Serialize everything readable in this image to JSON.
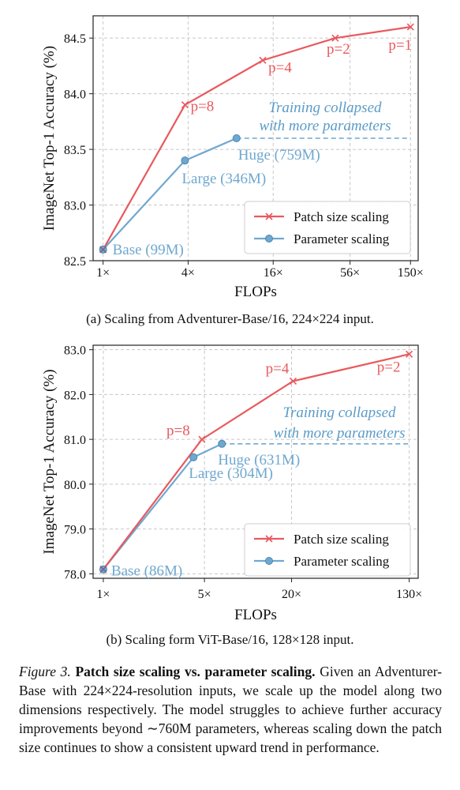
{
  "colors": {
    "patch": "#e8595d",
    "param": "#6fa8cf",
    "grid": "#c8c8c8",
    "collapse_text": "#5b9bc8"
  },
  "chart_data": [
    {
      "type": "line",
      "xlabel": "FLOPs",
      "ylabel": "ImageNet Top-1 Accuracy (%)",
      "x_scale": "log",
      "x_ticks": [
        1,
        4,
        16,
        56,
        150
      ],
      "x_tick_labels": [
        "1×",
        "4×",
        "16×",
        "56×",
        "150×"
      ],
      "xlim": [
        0.85,
        170
      ],
      "ylim": [
        82.5,
        84.7
      ],
      "y_ticks": [
        82.5,
        83.0,
        83.5,
        84.0,
        84.5
      ],
      "y_tick_labels": [
        "82.5",
        "83.0",
        "83.5",
        "84.0",
        "84.5"
      ],
      "grid": true,
      "legend_position": "bottom-right",
      "series": [
        {
          "name": "Patch size scaling",
          "marker": "x",
          "x": [
            1,
            3.8,
            13.5,
            44,
            150
          ],
          "y": [
            82.6,
            83.9,
            84.3,
            84.5,
            84.6
          ],
          "point_labels": [
            "",
            "p=8",
            "p=4",
            "p=2",
            "p=1"
          ]
        },
        {
          "name": "Parameter scaling",
          "marker": "o",
          "x": [
            1,
            3.8,
            8.8
          ],
          "y": [
            82.6,
            83.4,
            83.6
          ],
          "point_labels": [
            "Base (99M)",
            "Large (346M)",
            "Huge (759M)"
          ]
        }
      ],
      "plateau": {
        "y": 83.6,
        "x_from": 8.8,
        "x_to": 150
      },
      "annotation": [
        "Training collapsed",
        "with more parameters"
      ],
      "caption": "(a) Scaling from Adventurer-Base/16, 224×224 input."
    },
    {
      "type": "line",
      "xlabel": "FLOPs",
      "ylabel": "ImageNet Top-1 Accuracy (%)",
      "x_scale": "log",
      "x_ticks": [
        1,
        5,
        20,
        130
      ],
      "x_tick_labels": [
        "1×",
        "5×",
        "20×",
        "130×"
      ],
      "xlim": [
        0.85,
        150
      ],
      "ylim": [
        77.9,
        83.1
      ],
      "y_ticks": [
        78.0,
        79.0,
        80.0,
        81.0,
        82.0,
        83.0
      ],
      "y_tick_labels": [
        "78.0",
        "79.0",
        "80.0",
        "81.0",
        "82.0",
        "83.0"
      ],
      "grid": true,
      "legend_position": "bottom-right",
      "series": [
        {
          "name": "Patch size scaling",
          "marker": "x",
          "x": [
            1,
            4.8,
            20.5,
            130
          ],
          "y": [
            78.1,
            81.0,
            82.3,
            82.9
          ],
          "point_labels": [
            "",
            "p=8",
            "p=4",
            "p=2"
          ]
        },
        {
          "name": "Parameter scaling",
          "marker": "o",
          "x": [
            1,
            4.2,
            6.6
          ],
          "y": [
            78.1,
            80.6,
            80.9
          ],
          "point_labels": [
            "Base (86M)",
            "Large (304M)",
            "Huge (631M)"
          ]
        }
      ],
      "plateau": {
        "y": 80.9,
        "x_from": 6.6,
        "x_to": 130
      },
      "annotation": [
        "Training collapsed",
        "with more parameters"
      ],
      "caption": "(b) Scaling form ViT-Base/16, 128×128 input."
    }
  ],
  "figure_caption": {
    "label": "Figure 3.",
    "title": "Patch size scaling vs.  parameter scaling.",
    "body": "Given an Adventurer-Base with 224×224-resolution inputs, we scale up the model along two dimensions respectively. The model struggles to achieve further accuracy improvements beyond ∼760M parameters, whereas scaling down the patch size continues to show a consistent upward trend in performance."
  }
}
